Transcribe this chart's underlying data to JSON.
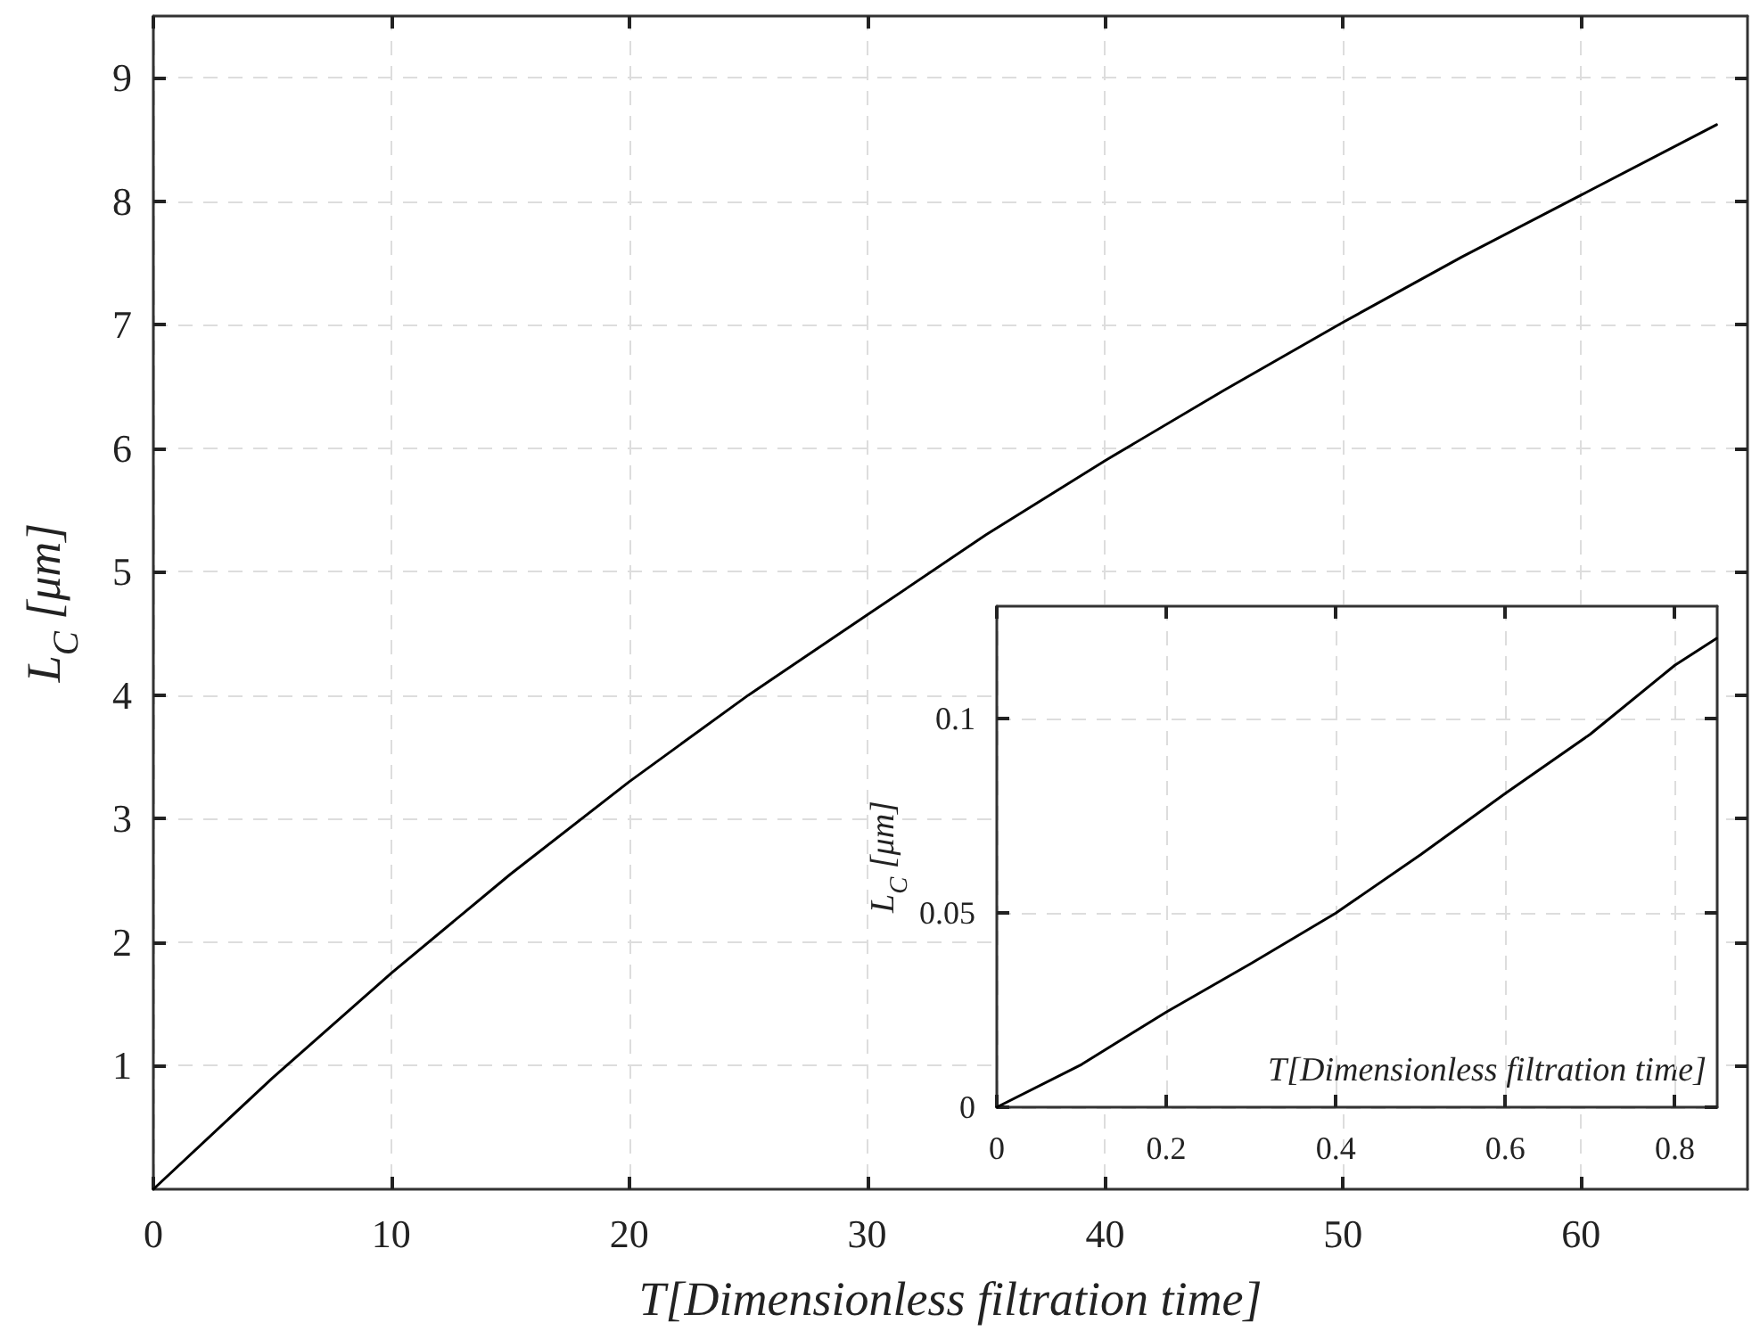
{
  "chart_data": [
    {
      "type": "line",
      "xlabel": "T[Dimensionless filtration time]",
      "ylabel": "L$_{C}$ [μm]",
      "xlim": [
        0,
        67
      ],
      "ylim": [
        0,
        9.5
      ],
      "xticks": [
        0,
        10,
        20,
        30,
        40,
        50,
        60
      ],
      "yticks": [
        1,
        2,
        3,
        4,
        5,
        6,
        7,
        8,
        9
      ],
      "grid": true,
      "line_style": "solid",
      "marker": "none",
      "series": [
        {
          "color": "#000000",
          "x": [
            0,
            5,
            10,
            15,
            20,
            25,
            30,
            35,
            40,
            45,
            50,
            55,
            60,
            65.7
          ],
          "values": [
            0,
            0.9,
            1.75,
            2.55,
            3.3,
            4.0,
            4.65,
            5.3,
            5.9,
            6.47,
            7.02,
            7.55,
            8.05,
            8.62
          ]
        }
      ]
    },
    {
      "type": "line",
      "xlabel": "T[Dimensionless filtration time]",
      "ylabel": "L$_{C}$ [μm]",
      "xlim": [
        0,
        0.85
      ],
      "ylim": [
        0,
        0.129
      ],
      "xticks": [
        0,
        0.2,
        0.4,
        0.6,
        0.8
      ],
      "yticks": [
        0,
        0.05,
        0.1
      ],
      "grid": true,
      "line_style": "solid",
      "marker": "none",
      "series": [
        {
          "color": "#000000",
          "x": [
            0,
            0.1,
            0.2,
            0.3,
            0.4,
            0.5,
            0.6,
            0.7,
            0.8,
            0.849
          ],
          "values": [
            0,
            0.011,
            0.0245,
            0.037,
            0.05,
            0.065,
            0.0808,
            0.096,
            0.1138,
            0.1207
          ]
        }
      ]
    }
  ]
}
